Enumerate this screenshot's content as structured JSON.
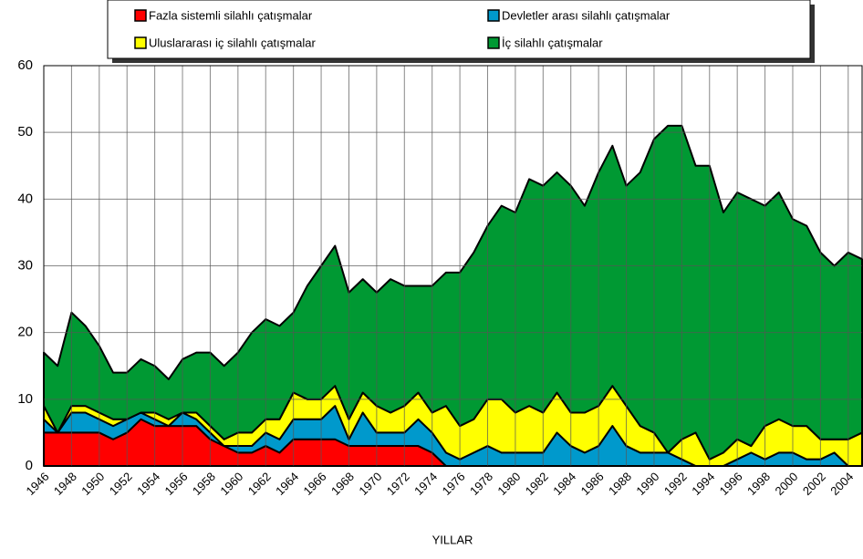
{
  "chart_data": {
    "type": "stacked-area",
    "x_label": "YILLAR",
    "x": [
      1946,
      1947,
      1948,
      1949,
      1950,
      1951,
      1952,
      1953,
      1954,
      1955,
      1956,
      1957,
      1958,
      1959,
      1960,
      1961,
      1962,
      1963,
      1964,
      1965,
      1966,
      1967,
      1968,
      1969,
      1970,
      1971,
      1972,
      1973,
      1974,
      1975,
      1976,
      1977,
      1978,
      1979,
      1980,
      1981,
      1982,
      1983,
      1984,
      1985,
      1986,
      1987,
      1988,
      1989,
      1990,
      1991,
      1992,
      1993,
      1994,
      1995,
      1996,
      1997,
      1998,
      1999,
      2000,
      2001,
      2002,
      2003,
      2004,
      2005
    ],
    "series": [
      {
        "name": "Fazla sistemli silahlı çatışmalar",
        "color": "#ff0000",
        "values": [
          5,
          5,
          5,
          5,
          5,
          4,
          5,
          7,
          6,
          6,
          6,
          6,
          4,
          3,
          2,
          2,
          3,
          2,
          4,
          4,
          4,
          4,
          3,
          3,
          3,
          3,
          3,
          3,
          2,
          0,
          0,
          0,
          0,
          0,
          0,
          0,
          0,
          0,
          0,
          0,
          0,
          0,
          0,
          0,
          0,
          0,
          0,
          0,
          0,
          0,
          0,
          0,
          0,
          0,
          0,
          0,
          0,
          0,
          0,
          0
        ]
      },
      {
        "name": "Devletler arası silahlı çatışmalar",
        "color": "#0099cc",
        "values": [
          2,
          0,
          3,
          3,
          2,
          2,
          2,
          1,
          1,
          0,
          2,
          1,
          1,
          0,
          1,
          1,
          2,
          2,
          3,
          3,
          3,
          5,
          1,
          5,
          2,
          2,
          2,
          4,
          3,
          2,
          1,
          2,
          3,
          2,
          2,
          2,
          2,
          5,
          3,
          2,
          3,
          6,
          3,
          2,
          2,
          2,
          1,
          0,
          0,
          0,
          1,
          2,
          1,
          2,
          2,
          1,
          1,
          2,
          0,
          0
        ]
      },
      {
        "name": "Uluslararası iç silahlı çatışmalar",
        "color": "#ffff00",
        "values": [
          2,
          0,
          1,
          1,
          1,
          1,
          0,
          0,
          1,
          1,
          0,
          1,
          1,
          1,
          2,
          2,
          2,
          3,
          4,
          3,
          3,
          3,
          3,
          3,
          4,
          3,
          4,
          4,
          3,
          7,
          5,
          5,
          7,
          8,
          6,
          7,
          6,
          6,
          5,
          6,
          6,
          6,
          6,
          4,
          3,
          0,
          3,
          5,
          1,
          2,
          3,
          1,
          5,
          5,
          4,
          5,
          3,
          2,
          4,
          5
        ]
      },
      {
        "name": "İç silahlı çatışmalar",
        "color": "#009933",
        "values": [
          8,
          10,
          14,
          12,
          10,
          7,
          7,
          8,
          7,
          6,
          8,
          9,
          11,
          11,
          12,
          15,
          15,
          14,
          12,
          17,
          20,
          21,
          19,
          17,
          17,
          20,
          18,
          16,
          19,
          20,
          23,
          25,
          26,
          29,
          30,
          34,
          34,
          33,
          34,
          31,
          35,
          36,
          33,
          38,
          44,
          49,
          47,
          40,
          44,
          36,
          37,
          37,
          33,
          34,
          31,
          30,
          28,
          26,
          28,
          26
        ]
      }
    ],
    "xlim": [
      1946,
      2005
    ],
    "xticks": [
      1946,
      1948,
      1950,
      1952,
      1954,
      1956,
      1958,
      1960,
      1962,
      1964,
      1966,
      1968,
      1970,
      1972,
      1974,
      1976,
      1978,
      1980,
      1982,
      1984,
      1986,
      1988,
      1990,
      1992,
      1994,
      1996,
      1998,
      2000,
      2002,
      2004
    ],
    "ylim": [
      0,
      60
    ],
    "yticks": [
      0,
      10,
      20,
      30,
      40,
      50,
      60
    ],
    "grid": true
  }
}
